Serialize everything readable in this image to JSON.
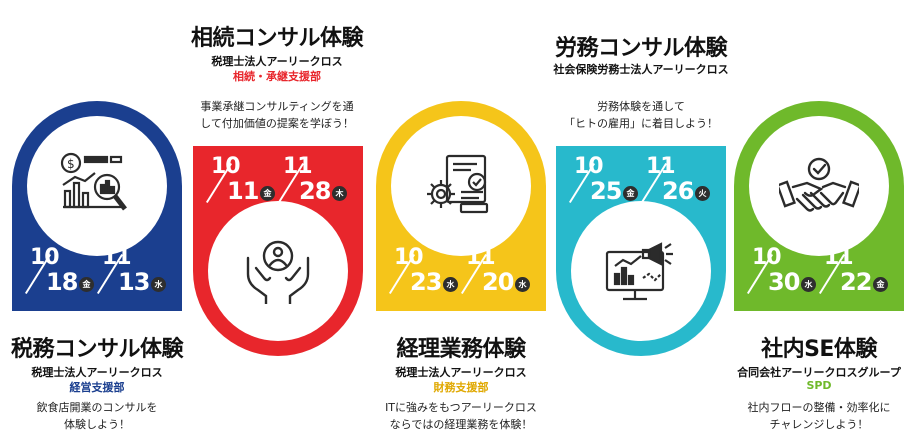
{
  "colors": {
    "navy": "#1b3f8f",
    "red": "#e8262c",
    "yellow": "#f5c51a",
    "teal": "#28b9cc",
    "green": "#6fb92b"
  },
  "cards": [
    {
      "title": "税務コンサル体験",
      "firm": "税理士法人アーリークロス",
      "dept": "経営支援部",
      "desc": [
        "飲食店開業のコンサルを",
        "体験しよう！"
      ],
      "icon": "financial-analysis-icon",
      "dates": [
        {
          "m": "10",
          "d": "18",
          "dow": "金"
        },
        {
          "m": "11",
          "d": "13",
          "dow": "水"
        }
      ]
    },
    {
      "title": "相続コンサル体験",
      "firm": "税理士法人アーリークロス",
      "dept": "相続・承継支援部",
      "desc": [
        "事業承継コンサルティングを通",
        "して付加価値の提案を学ぼう！"
      ],
      "icon": "people-in-hands-icon",
      "dates": [
        {
          "m": "10",
          "d": "11",
          "dow": "金"
        },
        {
          "m": "11",
          "d": "28",
          "dow": "木"
        }
      ]
    },
    {
      "title": "経理業務体験",
      "firm": "税理士法人アーリークロス",
      "dept": "財務支援部",
      "desc": [
        "ITに強みをもつアーリークロス",
        "ならではの経理業務を体験！"
      ],
      "icon": "gear-document-icon",
      "dates": [
        {
          "m": "10",
          "d": "23",
          "dow": "水"
        },
        {
          "m": "11",
          "d": "20",
          "dow": "水"
        }
      ]
    },
    {
      "title": "労務コンサル体験",
      "firm": "社会保険労務士法人アーリークロス",
      "dept": "",
      "desc": [
        "労務体験を通して",
        "「ヒトの雇用」に着目しよう！"
      ],
      "icon": "monitor-megaphone-icon",
      "dates": [
        {
          "m": "10",
          "d": "25",
          "dow": "金"
        },
        {
          "m": "11",
          "d": "26",
          "dow": "火"
        }
      ]
    },
    {
      "title": "社内SE体験",
      "firm": "合同会社アーリークロスグループ",
      "dept": "SPD",
      "desc": [
        "社内フローの整備・効率化に",
        "チャレンジしよう！"
      ],
      "icon": "handshake-icon",
      "dates": [
        {
          "m": "10",
          "d": "30",
          "dow": "水"
        },
        {
          "m": "11",
          "d": "22",
          "dow": "金"
        }
      ]
    }
  ]
}
